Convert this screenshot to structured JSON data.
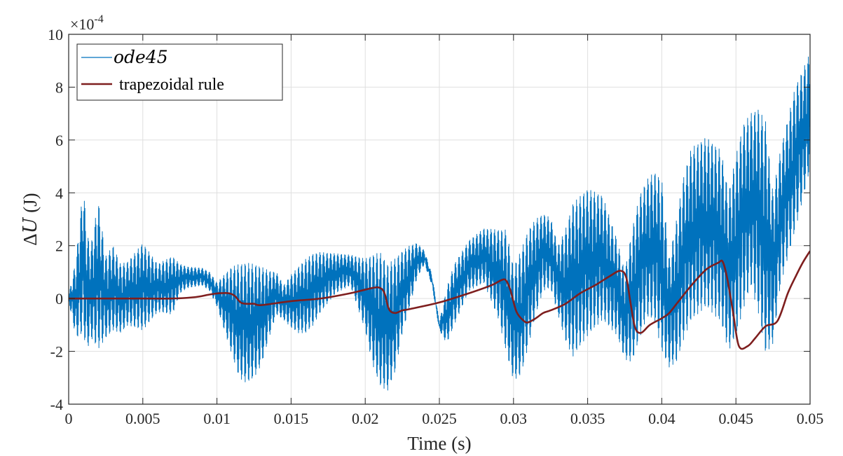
{
  "chart_data": {
    "type": "line",
    "xlabel": "Time (s)",
    "ylabel": "ΔU (J)",
    "ylabel_parts": {
      "delta": "Δ",
      "var": "U",
      "unit": " (J)"
    },
    "y_exponent": {
      "base": "×10",
      "power": "-4"
    },
    "xlim": [
      0,
      0.05
    ],
    "ylim": [
      -4,
      10
    ],
    "x_ticks": [
      "0",
      "0.005",
      "0.01",
      "0.015",
      "0.02",
      "0.025",
      "0.03",
      "0.035",
      "0.04",
      "0.045",
      "0.05"
    ],
    "y_ticks": [
      "-4",
      "-2",
      "0",
      "2",
      "4",
      "6",
      "8",
      "10"
    ],
    "grid": true,
    "legend_position": "top-left",
    "series": [
      {
        "name": "ode45",
        "color": "#0072BD",
        "style": "oscillating",
        "envelope_x": [
          0,
          0.0005,
          0.001,
          0.0012,
          0.0015,
          0.002,
          0.0025,
          0.003,
          0.0035,
          0.004,
          0.005,
          0.006,
          0.007,
          0.0075,
          0.008,
          0.009,
          0.0095,
          0.01,
          0.0105,
          0.011,
          0.0115,
          0.012,
          0.0125,
          0.013,
          0.0135,
          0.014,
          0.0145,
          0.015,
          0.0155,
          0.016,
          0.0165,
          0.017,
          0.018,
          0.019,
          0.02,
          0.0205,
          0.021,
          0.0215,
          0.022,
          0.0225,
          0.023,
          0.0235,
          0.024,
          0.0245,
          0.025,
          0.0255,
          0.026,
          0.027,
          0.028,
          0.029,
          0.0295,
          0.03,
          0.0305,
          0.031,
          0.0315,
          0.032,
          0.0325,
          0.033,
          0.0335,
          0.034,
          0.035,
          0.036,
          0.037,
          0.0375,
          0.038,
          0.0385,
          0.039,
          0.0395,
          0.04,
          0.0405,
          0.041,
          0.0415,
          0.042,
          0.043,
          0.044,
          0.0445,
          0.045,
          0.0455,
          0.046,
          0.0465,
          0.047,
          0.0475,
          0.048,
          0.049,
          0.05
        ],
        "envelope_upper": [
          0.1,
          1.5,
          4.35,
          2.5,
          2.0,
          3.7,
          1.6,
          2.0,
          1.3,
          1.4,
          2.1,
          1.3,
          1.6,
          1.3,
          1.2,
          1.15,
          1.0,
          0.6,
          0.9,
          1.2,
          1.3,
          1.35,
          1.3,
          1.2,
          1.05,
          1.0,
          0.5,
          0.9,
          1.2,
          1.5,
          1.7,
          1.75,
          1.7,
          1.65,
          1.5,
          1.65,
          1.75,
          1.3,
          1.5,
          1.8,
          2.0,
          2.1,
          1.8,
          0.9,
          -0.9,
          0.4,
          1.3,
          2.2,
          2.65,
          2.6,
          2.6,
          1.2,
          1.8,
          2.6,
          3.0,
          3.2,
          3.05,
          2.0,
          2.6,
          3.6,
          4.15,
          3.9,
          2.2,
          1.0,
          2.6,
          3.9,
          4.5,
          4.8,
          4.5,
          1.5,
          3.0,
          4.7,
          5.7,
          6.1,
          5.6,
          4.0,
          5.4,
          6.6,
          7.0,
          7.2,
          6.7,
          4.0,
          5.6,
          8.0,
          9.3
        ],
        "envelope_lower": [
          -0.1,
          -1.5,
          -1.3,
          -2.0,
          -1.5,
          -1.9,
          -1.5,
          -1.2,
          -1.3,
          -1.0,
          -1.2,
          -0.5,
          -0.6,
          0.2,
          0.4,
          0.5,
          0.3,
          -0.3,
          -1.2,
          -2.1,
          -3.0,
          -3.2,
          -3.0,
          -2.5,
          -1.5,
          -0.6,
          -0.8,
          -1.1,
          -1.3,
          -1.3,
          -1.0,
          -0.5,
          0.2,
          0.5,
          -1.2,
          -2.5,
          -3.3,
          -3.5,
          -2.8,
          -1.3,
          -0.3,
          0.8,
          1.3,
          0.5,
          -1.2,
          -1.7,
          -1.0,
          0.3,
          0.6,
          -0.8,
          -2.0,
          -3.1,
          -2.9,
          -1.8,
          -0.6,
          0.3,
          0.4,
          -0.6,
          -1.6,
          -2.2,
          -1.4,
          -0.8,
          -1.4,
          -2.3,
          -2.4,
          -1.5,
          -0.7,
          -0.8,
          -2.0,
          -2.6,
          -2.4,
          -1.5,
          -0.8,
          -0.3,
          -0.9,
          -2.0,
          -1.4,
          -0.4,
          0.5,
          -0.5,
          -2.1,
          -1.7,
          0.5,
          2.6,
          4.9
        ]
      },
      {
        "name": "trapezoidal rule",
        "color": "#7E1E1E",
        "style": "smooth",
        "x": [
          0,
          0.004,
          0.007,
          0.0085,
          0.0095,
          0.0102,
          0.0108,
          0.0112,
          0.0116,
          0.012,
          0.0125,
          0.013,
          0.015,
          0.017,
          0.019,
          0.0205,
          0.021,
          0.0213,
          0.0216,
          0.022,
          0.0225,
          0.023,
          0.025,
          0.027,
          0.0285,
          0.0292,
          0.0295,
          0.0298,
          0.0302,
          0.0307,
          0.031,
          0.0315,
          0.032,
          0.0325,
          0.0335,
          0.0345,
          0.0355,
          0.0365,
          0.0372,
          0.0376,
          0.0379,
          0.0382,
          0.0386,
          0.0392,
          0.04,
          0.0405,
          0.041,
          0.042,
          0.043,
          0.0438,
          0.0441,
          0.0444,
          0.0448,
          0.0452,
          0.0458,
          0.0463,
          0.047,
          0.0478,
          0.0485,
          0.049,
          0.0495,
          0.05
        ],
        "y": [
          0,
          0,
          0.0,
          0.05,
          0.15,
          0.2,
          0.2,
          0.1,
          -0.15,
          -0.2,
          -0.2,
          -0.25,
          -0.1,
          0.0,
          0.2,
          0.4,
          0.4,
          0.2,
          -0.4,
          -0.55,
          -0.45,
          -0.4,
          -0.15,
          0.2,
          0.5,
          0.7,
          0.68,
          0.3,
          -0.5,
          -0.85,
          -0.9,
          -0.75,
          -0.55,
          -0.45,
          -0.2,
          0.2,
          0.5,
          0.85,
          1.05,
          0.8,
          -0.2,
          -1.1,
          -1.3,
          -1.0,
          -0.75,
          -0.55,
          -0.2,
          0.5,
          1.1,
          1.35,
          1.4,
          0.8,
          -0.5,
          -1.8,
          -1.8,
          -1.5,
          -1.05,
          -0.85,
          0.2,
          0.8,
          1.35,
          1.8
        ]
      }
    ]
  }
}
